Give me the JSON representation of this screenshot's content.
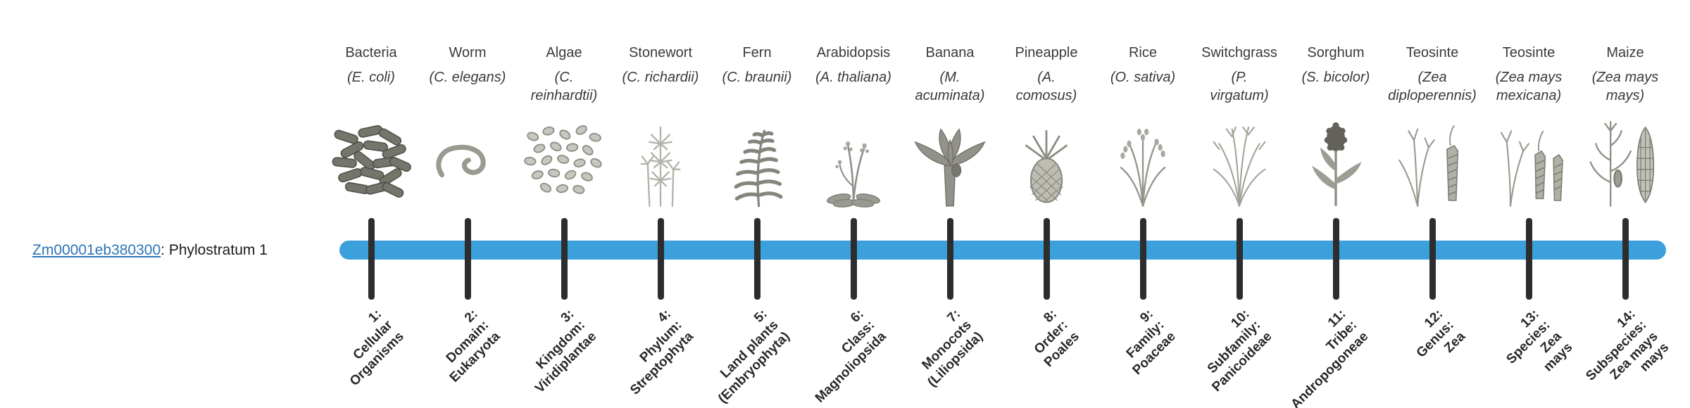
{
  "page": {
    "background": "#ffffff"
  },
  "gene": {
    "id_label": "Zm00001eb380300",
    "suffix_label": ": Phylostratum 1"
  },
  "timeline": {
    "bar_color": "#3ba0dc",
    "tick_color": "#2d2d2d"
  },
  "organisms": [
    {
      "common": "Bacteria",
      "scientific": "(E. coli)",
      "icon": "bacteria-icon"
    },
    {
      "common": "Worm",
      "scientific": "(C. elegans)",
      "icon": "worm-icon"
    },
    {
      "common": "Algae",
      "scientific": "(C.\nreinhardtii)",
      "icon": "algae-icon"
    },
    {
      "common": "Stonewort",
      "scientific": "(C. richardii)",
      "icon": "stonewort-icon"
    },
    {
      "common": "Fern",
      "scientific": "(C. braunii)",
      "icon": "fern-icon"
    },
    {
      "common": "Arabidopsis",
      "scientific": "(A. thaliana)",
      "icon": "arabidopsis-icon"
    },
    {
      "common": "Banana",
      "scientific": "(M.\nacuminata)",
      "icon": "banana-icon"
    },
    {
      "common": "Pineapple",
      "scientific": "(A.\ncomosus)",
      "icon": "pineapple-icon"
    },
    {
      "common": "Rice",
      "scientific": "(O. sativa)",
      "icon": "rice-icon"
    },
    {
      "common": "Switchgrass",
      "scientific": "(P.\nvirgatum)",
      "icon": "switchgrass-icon"
    },
    {
      "common": "Sorghum",
      "scientific": "(S. bicolor)",
      "icon": "sorghum-icon"
    },
    {
      "common": "Teosinte",
      "scientific": "(Zea\ndiploperennis)",
      "icon": "teosinte-diploperennis-icon"
    },
    {
      "common": "Teosinte",
      "scientific": "(Zea mays\nmexicana)",
      "icon": "teosinte-mexicana-icon"
    },
    {
      "common": "Maize",
      "scientific": "(Zea mays\nmays)",
      "icon": "maize-icon"
    }
  ],
  "phylostrata": [
    {
      "label": "1:\nCellular\nOrganisms"
    },
    {
      "label": "2:\nDomain:\nEukaryota"
    },
    {
      "label": "3:\nKingdom:\nViridiplantae"
    },
    {
      "label": "4:\nPhylum:\nStreptophyta"
    },
    {
      "label": "5:\nLand plants\n(Embryophyta)"
    },
    {
      "label": "6:\nClass:\nMagnoliopsida"
    },
    {
      "label": "7:\nMonocots\n(Liliopsida)"
    },
    {
      "label": "8:\nOrder:\nPoales"
    },
    {
      "label": "9:\nFamily:\nPoaceae"
    },
    {
      "label": "10:\nSubfamily:\nPanicoideae"
    },
    {
      "label": "11:\nTribe:\nAndropogoneae"
    },
    {
      "label": "12:\nGenus:\nZea"
    },
    {
      "label": "13:\nSpecies:\nZea\nmays"
    },
    {
      "label": "14:\nSubspecies:\nZea mays\nmays"
    }
  ],
  "chart_data": {
    "type": "table",
    "title": "Zm00001eb380300: Phylostratum 1",
    "categories": [
      "Bacteria",
      "Worm",
      "Algae",
      "Stonewort",
      "Fern",
      "Arabidopsis",
      "Banana",
      "Pineapple",
      "Rice",
      "Switchgrass",
      "Sorghum",
      "Teosinte",
      "Teosinte",
      "Maize"
    ],
    "x": [
      1,
      2,
      3,
      4,
      5,
      6,
      7,
      8,
      9,
      10,
      11,
      12,
      13,
      14
    ],
    "tick_labels": [
      "1: Cellular Organisms",
      "2: Domain: Eukaryota",
      "3: Kingdom: Viridiplantae",
      "4: Phylum: Streptophyta",
      "5: Land plants (Embryophyta)",
      "6: Class: Magnoliopsida",
      "7: Monocots (Liliopsida)",
      "8: Order: Poales",
      "9: Family: Poaceae",
      "10: Subfamily: Panicoideae",
      "11: Tribe: Andropogoneae",
      "12: Genus: Zea",
      "13: Species: Zea mays",
      "14: Subspecies: Zea mays mays"
    ],
    "highlighted_phylostratum": 1,
    "legend_position": "none",
    "grid": false
  }
}
